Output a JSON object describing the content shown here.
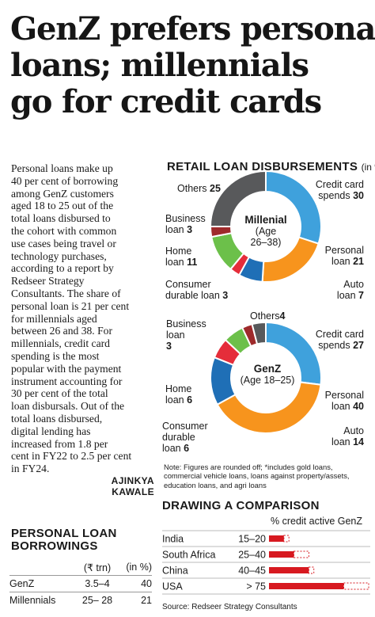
{
  "headline": [
    "GenZ prefers personal",
    "loans; millennials",
    "go for credit cards"
  ],
  "body_text": [
    "Personal loans make up",
    "40 per cent of borrowing",
    "among GenZ customers",
    "aged 18 to 25 out of the",
    "total loans disbursed to",
    "the cohort with common",
    "use cases being travel or",
    "technology purchases,",
    "according to a report by",
    "Redseer Strategy",
    "Consultants. The share of",
    "personal loan is 21 per cent",
    "for millennials aged",
    "between 26 and 38. For",
    "millennials, credit card",
    "spending is the most",
    "popular with the payment",
    "instrument accounting for",
    "30 per cent of the total",
    "loan disbursals. Out of the",
    "total loans disbursed,",
    "digital lending has",
    "increased from 1.8 per",
    "cent in FY22 to 2.5 per cent",
    "in FY24."
  ],
  "byline": "AJINKYA KAWALE",
  "retail": {
    "title": "RETAIL LOAN DISBURSEMENTS",
    "unit": "(in %)"
  },
  "colors": {
    "credit": "#3fa1dc",
    "personal": "#f7941d",
    "auto": "#1f6fb6",
    "consumer": "#e52d3a",
    "home": "#6cc04a",
    "business": "#9e2a2b",
    "others": "#58595b",
    "red": "#d71920"
  },
  "chart_data": [
    {
      "type": "pie",
      "title": "Millenial (Age 26–38)",
      "center_label": [
        "Millenial",
        "(Age",
        "26–38)"
      ],
      "slices": [
        {
          "label": "Credit card spends",
          "value": 30,
          "text": [
            "Credit card",
            "spends"
          ],
          "color": "#3fa1dc"
        },
        {
          "label": "Personal loan",
          "value": 21,
          "text": [
            "Personal",
            "loan"
          ],
          "color": "#f7941d"
        },
        {
          "label": "Auto loan",
          "value": 7,
          "text": [
            "Auto",
            "loan"
          ],
          "color": "#1f6fb6"
        },
        {
          "label": "Consumer durable loan",
          "value": 3,
          "text": [
            "Consumer",
            "durable loan"
          ],
          "color": "#e52d3a"
        },
        {
          "label": "Home loan",
          "value": 11,
          "text": [
            "Home",
            "loan"
          ],
          "color": "#6cc04a"
        },
        {
          "label": "Business loan",
          "value": 3,
          "text": [
            "Business",
            "loan"
          ],
          "color": "#9e2a2b"
        },
        {
          "label": "Others",
          "value": 25,
          "text": [
            "Others"
          ],
          "color": "#58595b"
        }
      ]
    },
    {
      "type": "pie",
      "title": "GenZ (Age 18–25)",
      "center_label": [
        "GenZ",
        "(Age 18–25)"
      ],
      "slices": [
        {
          "label": "Credit card spends",
          "value": 27,
          "text": [
            "Credit card",
            "spends"
          ],
          "color": "#3fa1dc"
        },
        {
          "label": "Personal loan",
          "value": 40,
          "text": [
            "Personal",
            "loan"
          ],
          "color": "#f7941d"
        },
        {
          "label": "Auto loan",
          "value": 14,
          "text": [
            "Auto",
            "loan"
          ],
          "color": "#1f6fb6"
        },
        {
          "label": "Consumer durable loan",
          "value": 6,
          "text": [
            "Consumer",
            "durable",
            "loan"
          ],
          "color": "#e52d3a"
        },
        {
          "label": "Home loan",
          "value": 6,
          "text": [
            "Home",
            "loan"
          ],
          "color": "#6cc04a"
        },
        {
          "label": "Business loan",
          "value": 3,
          "text": [
            "Business",
            "loan"
          ],
          "color": "#9e2a2b"
        },
        {
          "label": "Others",
          "value": 4,
          "text": [
            "Others"
          ],
          "color": "#58595b"
        }
      ]
    },
    {
      "type": "bar",
      "title": "DRAWING A COMPARISON",
      "ylabel": "% credit active GenZ",
      "categories": [
        "India",
        "South Africa",
        "China",
        "USA"
      ],
      "ranges": [
        "15–20",
        "25–40",
        "40–45",
        "> 75"
      ],
      "low": [
        15,
        25,
        40,
        75
      ],
      "high": [
        20,
        40,
        45,
        100
      ],
      "xlim": [
        0,
        100
      ]
    },
    {
      "type": "table",
      "title": "PERSONAL LOAN BORROWINGS",
      "columns": [
        "",
        "(₹ trn)",
        "(in %)"
      ],
      "rows": [
        [
          "GenZ",
          "3.5–4",
          "40"
        ],
        [
          "Millennials",
          "25– 28",
          "21"
        ]
      ]
    }
  ],
  "note": [
    "Note: Figures are rounded off; *includes gold loans,",
    "commercial vehicle loans, loans against property/assets,",
    "education loans, and agri loans"
  ],
  "source": "Source: Redseer Strategy Consultants"
}
